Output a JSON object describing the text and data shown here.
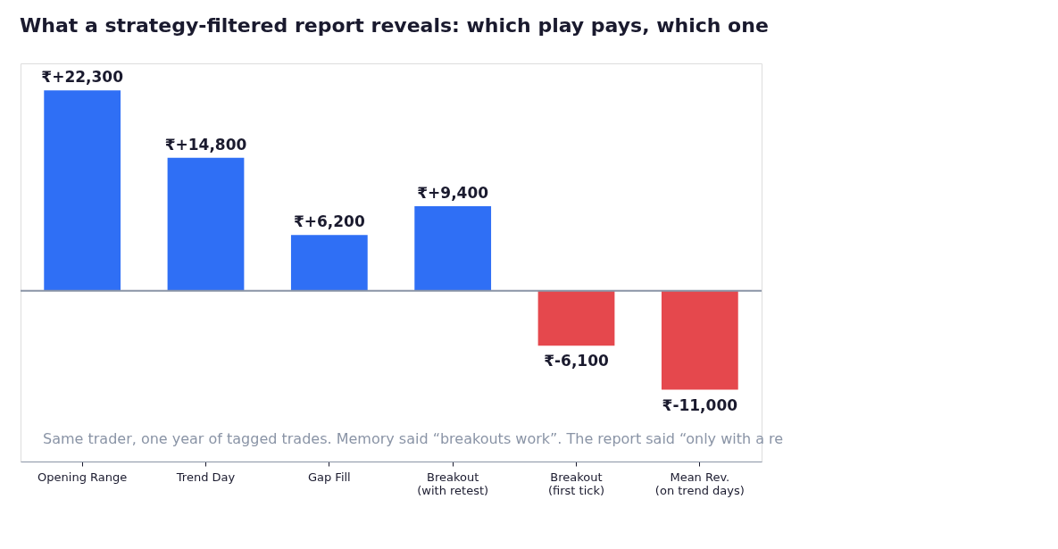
{
  "chart_data": {
    "type": "bar",
    "title": "What a strategy-filtered report reveals: which play pays, which one",
    "categories": [
      "Opening Range",
      "Trend Day",
      "Gap Fill",
      "Breakout\n(with retest)",
      "Breakout\n(first tick)",
      "Mean Rev.\n(on trend days)"
    ],
    "values": [
      22300,
      14800,
      6200,
      9400,
      -6100,
      -11000
    ],
    "colors": [
      "#2f6ff5",
      "#2f6ff5",
      "#2f6ff5",
      "#2f6ff5",
      "#e5484d",
      "#e5484d"
    ],
    "value_labels": [
      "₹+22,300",
      "₹+14,800",
      "₹+6,200",
      "₹+9,400",
      "₹-6,100",
      "₹-11,000"
    ],
    "ref_lines": [
      {
        "axis": "y",
        "value": 0,
        "label": null,
        "color": "#8a94a6"
      }
    ],
    "annotations": [
      "Same trader, one year of tagged trades. Memory said “breakouts work”. The report said “only with a re"
    ],
    "grid": false,
    "tick_labels": "x"
  }
}
